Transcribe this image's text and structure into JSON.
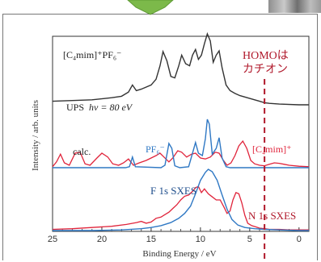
{
  "colors": {
    "ups": "#333333",
    "pf6": "#2f78c4",
    "c4mim": "#e0243b",
    "homo": "#b0182b",
    "arrow": "#7cb94a"
  },
  "chart_data": {
    "type": "line",
    "title": "",
    "xlabel": "Binding Energy / eV",
    "ylabel": "Intensity / arb. units",
    "xlim": [
      25,
      -1
    ],
    "x_ticks": [
      "25",
      "20",
      "15",
      "10",
      "5",
      "0"
    ],
    "x_tick_values": [
      25,
      20,
      15,
      10,
      5,
      0
    ],
    "annotations": {
      "sample": "[C₄mim]⁺PF₆⁻",
      "homo_line1": "HOMOは",
      "homo_line2": "カチオン",
      "homo_x": 3.5
    },
    "series": [
      {
        "name": "UPS hν = 80 eV",
        "group": "upper",
        "points": [
          [
            25,
            0.05
          ],
          [
            23,
            0.06
          ],
          [
            21,
            0.07
          ],
          [
            19,
            0.1
          ],
          [
            18,
            0.12
          ],
          [
            17.3,
            0.18
          ],
          [
            16.9,
            0.28
          ],
          [
            16.5,
            0.2
          ],
          [
            16,
            0.22
          ],
          [
            15,
            0.28
          ],
          [
            14.5,
            0.36
          ],
          [
            14.1,
            0.55
          ],
          [
            13.8,
            0.75
          ],
          [
            13.4,
            0.62
          ],
          [
            13,
            0.4
          ],
          [
            12.6,
            0.38
          ],
          [
            12.2,
            0.55
          ],
          [
            11.9,
            0.7
          ],
          [
            11.5,
            0.58
          ],
          [
            11.1,
            0.55
          ],
          [
            10.8,
            0.7
          ],
          [
            10.5,
            0.78
          ],
          [
            10.2,
            0.64
          ],
          [
            9.9,
            0.7
          ],
          [
            9.6,
            0.86
          ],
          [
            9.3,
            1.0
          ],
          [
            9,
            0.9
          ],
          [
            8.7,
            0.6
          ],
          [
            8.4,
            0.7
          ],
          [
            8.1,
            0.76
          ],
          [
            7.8,
            0.52
          ],
          [
            7.4,
            0.28
          ],
          [
            7,
            0.2
          ],
          [
            6.5,
            0.16
          ],
          [
            6,
            0.13
          ],
          [
            5,
            0.09
          ],
          [
            4,
            0.05
          ],
          [
            3.5,
            0.03
          ],
          [
            3,
            0.02
          ],
          [
            2,
            0.01
          ],
          [
            0,
            0.0
          ],
          [
            -1,
            0.0
          ]
        ]
      },
      {
        "name": "PF₆⁻",
        "group": "calc",
        "points": [
          [
            25,
            0.0
          ],
          [
            17.6,
            0.0
          ],
          [
            17.2,
            0.02
          ],
          [
            16.9,
            0.22
          ],
          [
            16.6,
            0.02
          ],
          [
            14,
            0.0
          ],
          [
            13.6,
            0.05
          ],
          [
            13.2,
            0.5
          ],
          [
            12.9,
            0.4
          ],
          [
            12.6,
            0.04
          ],
          [
            12.1,
            0.0
          ],
          [
            11.2,
            0.02
          ],
          [
            10.8,
            0.3
          ],
          [
            10.5,
            0.52
          ],
          [
            10.2,
            0.3
          ],
          [
            9.8,
            0.25
          ],
          [
            9.5,
            0.6
          ],
          [
            9.3,
            1.0
          ],
          [
            9.1,
            0.9
          ],
          [
            8.8,
            0.28
          ],
          [
            8.4,
            0.4
          ],
          [
            8.1,
            0.62
          ],
          [
            7.8,
            0.2
          ],
          [
            7.4,
            0.02
          ],
          [
            7,
            0.0
          ],
          [
            -1,
            0.0
          ]
        ]
      },
      {
        "name": "[C₄mim]⁺",
        "group": "calc",
        "points": [
          [
            25,
            0.02
          ],
          [
            24.6,
            0.12
          ],
          [
            24.2,
            0.28
          ],
          [
            23.8,
            0.1
          ],
          [
            23.3,
            0.05
          ],
          [
            22.7,
            0.3
          ],
          [
            22.2,
            0.32
          ],
          [
            21.7,
            0.08
          ],
          [
            21.2,
            0.05
          ],
          [
            20.5,
            0.2
          ],
          [
            20,
            0.3
          ],
          [
            19.4,
            0.22
          ],
          [
            18.9,
            0.08
          ],
          [
            18.3,
            0.05
          ],
          [
            17.8,
            0.1
          ],
          [
            17.3,
            0.18
          ],
          [
            16.8,
            0.05
          ],
          [
            16.2,
            0.1
          ],
          [
            15.5,
            0.15
          ],
          [
            15,
            0.2
          ],
          [
            14.5,
            0.25
          ],
          [
            14.1,
            0.3
          ],
          [
            13.7,
            0.22
          ],
          [
            13.2,
            0.12
          ],
          [
            12.8,
            0.2
          ],
          [
            12.3,
            0.35
          ],
          [
            11.9,
            0.32
          ],
          [
            11.4,
            0.22
          ],
          [
            10.9,
            0.28
          ],
          [
            10.5,
            0.3
          ],
          [
            10,
            0.2
          ],
          [
            9.5,
            0.18
          ],
          [
            9,
            0.22
          ],
          [
            8.5,
            0.32
          ],
          [
            8.1,
            0.3
          ],
          [
            7.7,
            0.16
          ],
          [
            7.3,
            0.05
          ],
          [
            6.9,
            0.1
          ],
          [
            6.5,
            0.25
          ],
          [
            6.1,
            0.45
          ],
          [
            5.7,
            0.55
          ],
          [
            5.3,
            0.4
          ],
          [
            4.9,
            0.15
          ],
          [
            4.5,
            0.08
          ],
          [
            4,
            0.05
          ],
          [
            3.5,
            0.04
          ],
          [
            3,
            0.07
          ],
          [
            2.5,
            0.1
          ],
          [
            2,
            0.09
          ],
          [
            1.5,
            0.07
          ],
          [
            1,
            0.05
          ],
          [
            0,
            0.03
          ],
          [
            -1,
            0.02
          ]
        ]
      },
      {
        "name": "F 1s SXES",
        "group": "sxes",
        "points": [
          [
            25,
            0.0
          ],
          [
            21,
            0.0
          ],
          [
            18,
            0.01
          ],
          [
            16,
            0.03
          ],
          [
            15,
            0.05
          ],
          [
            14,
            0.08
          ],
          [
            13,
            0.13
          ],
          [
            12.2,
            0.2
          ],
          [
            11.6,
            0.28
          ],
          [
            11,
            0.4
          ],
          [
            10.5,
            0.6
          ],
          [
            10,
            0.82
          ],
          [
            9.5,
            0.95
          ],
          [
            9.2,
            1.0
          ],
          [
            8.8,
            0.96
          ],
          [
            8.3,
            0.82
          ],
          [
            7.8,
            0.58
          ],
          [
            7.3,
            0.35
          ],
          [
            6.8,
            0.18
          ],
          [
            6.2,
            0.09
          ],
          [
            5.5,
            0.05
          ],
          [
            4.5,
            0.03
          ],
          [
            3.5,
            0.02
          ],
          [
            2,
            0.01
          ],
          [
            0,
            0.0
          ],
          [
            -1,
            0.0
          ]
        ]
      },
      {
        "name": "N 1s SXES",
        "group": "sxes",
        "points": [
          [
            25,
            0.02
          ],
          [
            23,
            0.03
          ],
          [
            21,
            0.05
          ],
          [
            19,
            0.07
          ],
          [
            17.5,
            0.1
          ],
          [
            16.5,
            0.13
          ],
          [
            16,
            0.15
          ],
          [
            15.5,
            0.12
          ],
          [
            15,
            0.14
          ],
          [
            14.5,
            0.2
          ],
          [
            14,
            0.22
          ],
          [
            13.6,
            0.26
          ],
          [
            13.2,
            0.3
          ],
          [
            12.8,
            0.36
          ],
          [
            12.4,
            0.42
          ],
          [
            12,
            0.5
          ],
          [
            11.6,
            0.56
          ],
          [
            11.2,
            0.58
          ],
          [
            10.8,
            0.64
          ],
          [
            10.5,
            0.7
          ],
          [
            10.2,
            0.72
          ],
          [
            9.9,
            0.62
          ],
          [
            9.6,
            0.68
          ],
          [
            9.2,
            0.6
          ],
          [
            8.8,
            0.55
          ],
          [
            8.4,
            0.5
          ],
          [
            8,
            0.5
          ],
          [
            7.6,
            0.38
          ],
          [
            7.3,
            0.28
          ],
          [
            7,
            0.32
          ],
          [
            6.7,
            0.5
          ],
          [
            6.4,
            0.62
          ],
          [
            6.1,
            0.6
          ],
          [
            5.8,
            0.45
          ],
          [
            5.5,
            0.25
          ],
          [
            5.2,
            0.12
          ],
          [
            4.8,
            0.08
          ],
          [
            4.4,
            0.06
          ],
          [
            4,
            0.04
          ],
          [
            3.5,
            0.03
          ],
          [
            3,
            0.02
          ],
          [
            2,
            0.02
          ],
          [
            1,
            0.01
          ],
          [
            0,
            0.01
          ],
          [
            -1,
            0.01
          ]
        ]
      }
    ],
    "labels": {
      "ups": "UPS",
      "ups_hv": "hν = 80 eV",
      "calc": "calc.",
      "pf6": "PF₆⁻",
      "c4mim": "[C₄mim]⁺",
      "f1s": "F 1s SXES",
      "n1s": "N 1s SXES"
    }
  }
}
